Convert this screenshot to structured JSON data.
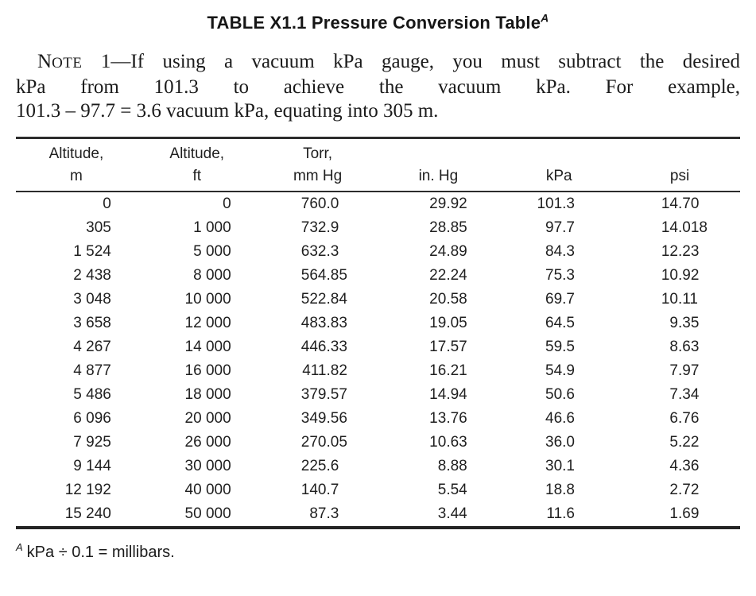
{
  "title": {
    "text": "TABLE X1.1 Pressure Conversion Table",
    "superscript": "A"
  },
  "note": {
    "label_cap": "N",
    "label_small": "OTE",
    "line1_rest": " 1—If using a vacuum kPa gauge, you must subtract the desired",
    "line2": "kPa from 101.3 to achieve the vacuum kPa. For example,",
    "line3": "101.3 – 97.7 = 3.6 vacuum kPa, equating into 305 m."
  },
  "table": {
    "columns": [
      {
        "key": "altitude-m",
        "header_line1": "Altitude,",
        "header_line2": "m"
      },
      {
        "key": "altitude-ft",
        "header_line1": "Altitude,",
        "header_line2": "ft"
      },
      {
        "key": "torr-mm-hg",
        "header_line1": "Torr,",
        "header_line2": "mm Hg"
      },
      {
        "key": "in-hg",
        "header_line1": "",
        "header_line2": "in. Hg"
      },
      {
        "key": "kpa",
        "header_line1": "",
        "header_line2": "kPa"
      },
      {
        "key": "psi",
        "header_line1": "",
        "header_line2": "psi"
      }
    ],
    "rows": [
      [
        "0",
        "0",
        "760.0",
        "29.92",
        "101.3",
        "14.70"
      ],
      [
        "305",
        "1 000",
        "732.9",
        "28.85",
        "97.7",
        "14.018"
      ],
      [
        "1 524",
        "5 000",
        "632.3",
        "24.89",
        "84.3",
        "12.23"
      ],
      [
        "2 438",
        "8 000",
        "564.85",
        "22.24",
        "75.3",
        "10.92"
      ],
      [
        "3 048",
        "10 000",
        "522.84",
        "20.58",
        "69.7",
        "10.11"
      ],
      [
        "3 658",
        "12 000",
        "483.83",
        "19.05",
        "64.5",
        "9.35"
      ],
      [
        "4 267",
        "14 000",
        "446.33",
        "17.57",
        "59.5",
        "8.63"
      ],
      [
        "4 877",
        "16 000",
        "411.82",
        "16.21",
        "54.9",
        "7.97"
      ],
      [
        "5 486",
        "18 000",
        "379.57",
        "14.94",
        "50.6",
        "7.34"
      ],
      [
        "6 096",
        "20 000",
        "349.56",
        "13.76",
        "46.6",
        "6.76"
      ],
      [
        "7 925",
        "26 000",
        "270.05",
        "10.63",
        "36.0",
        "5.22"
      ],
      [
        "9 144",
        "30 000",
        "225.6",
        "8.88",
        "30.1",
        "4.36"
      ],
      [
        "12 192",
        "40 000",
        "140.7",
        "5.54",
        "18.8",
        "2.72"
      ],
      [
        "15 240",
        "50 000",
        "87.3",
        "3.44",
        "11.6",
        "1.69"
      ]
    ]
  },
  "footnote": {
    "superscript": "A",
    "text": "kPa ÷ 0.1 = millibars."
  },
  "colors": {
    "ink": "#1b1b1b",
    "rule": "#2c2c2c",
    "background": "#ffffff"
  }
}
